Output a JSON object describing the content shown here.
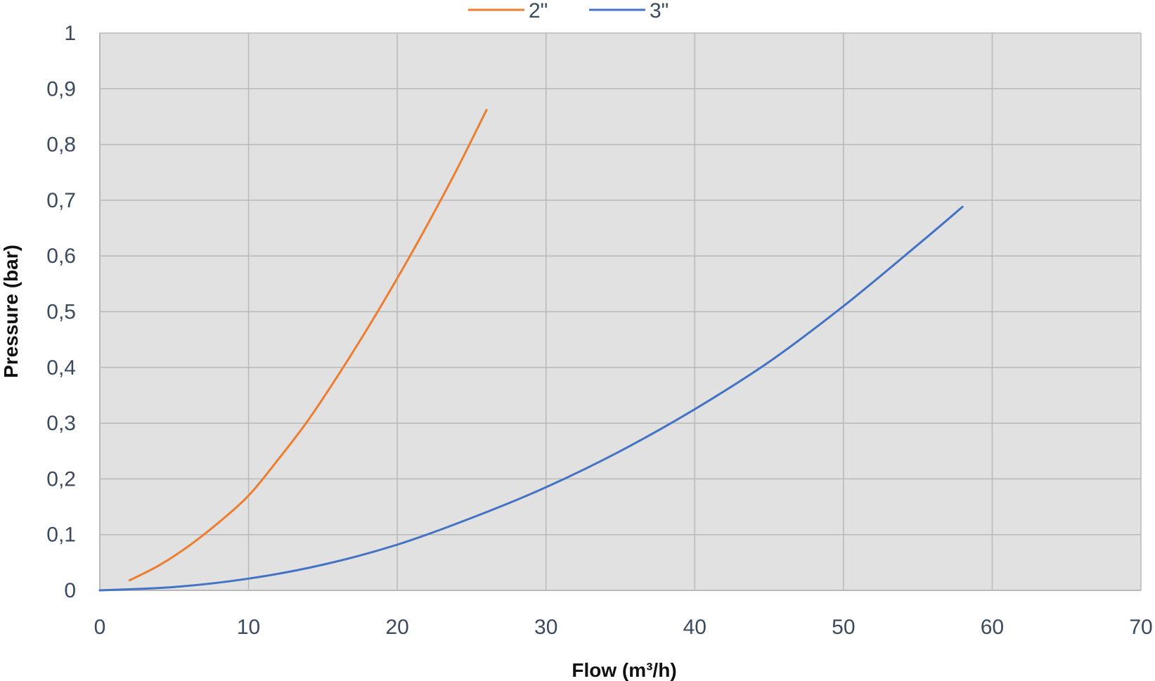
{
  "chart_data": {
    "type": "line",
    "title": "",
    "xlabel": "Flow (m³/h)",
    "ylabel": "Pressure (bar)",
    "xlim": [
      0,
      70
    ],
    "ylim": [
      0,
      1
    ],
    "x_ticks": [
      "0",
      "10",
      "20",
      "30",
      "40",
      "50",
      "60",
      "70"
    ],
    "y_ticks": [
      "0",
      "0,1",
      "0,2",
      "0,3",
      "0,4",
      "0,5",
      "0,6",
      "0,7",
      "0,8",
      "0,9",
      "1"
    ],
    "grid": true,
    "legend_position": "top-center",
    "plot_background": "#e1e1e1",
    "series": [
      {
        "name": "2\"",
        "color": "#ed7d31",
        "x": [
          2,
          4,
          6,
          8,
          10,
          12,
          14,
          16,
          18,
          20,
          22,
          24,
          26
        ],
        "y": [
          0.018,
          0.045,
          0.08,
          0.122,
          0.17,
          0.235,
          0.305,
          0.385,
          0.47,
          0.56,
          0.655,
          0.755,
          0.862
        ]
      },
      {
        "name": "3\"",
        "color": "#4472c4",
        "x": [
          0,
          5,
          10,
          15,
          20,
          25,
          30,
          35,
          40,
          45,
          50,
          55,
          58
        ],
        "y": [
          0.0,
          0.006,
          0.021,
          0.046,
          0.082,
          0.13,
          0.185,
          0.25,
          0.325,
          0.41,
          0.51,
          0.62,
          0.688
        ]
      }
    ]
  }
}
